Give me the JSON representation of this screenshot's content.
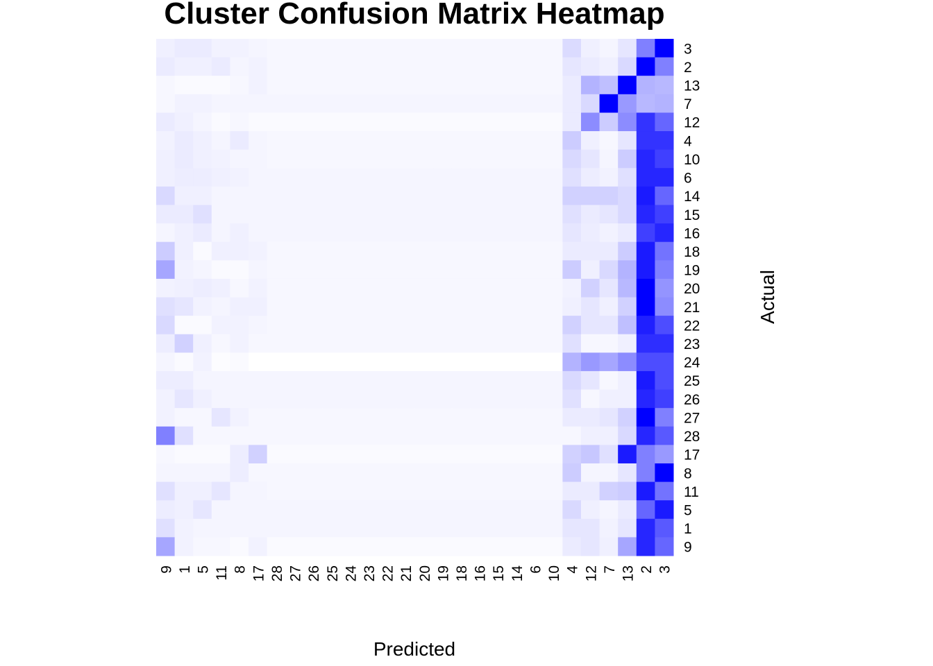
{
  "chart_data": {
    "type": "heatmap",
    "title": "Cluster Confusion Matrix Heatmap",
    "xlabel": "Predicted",
    "ylabel": "Actual",
    "x_categories": [
      "9",
      "1",
      "5",
      "11",
      "8",
      "17",
      "28",
      "27",
      "26",
      "25",
      "24",
      "23",
      "22",
      "21",
      "20",
      "19",
      "18",
      "16",
      "15",
      "14",
      "6",
      "10",
      "4",
      "12",
      "7",
      "13",
      "2",
      "3"
    ],
    "y_categories": [
      "3",
      "2",
      "13",
      "7",
      "12",
      "4",
      "10",
      "6",
      "14",
      "15",
      "16",
      "18",
      "19",
      "20",
      "21",
      "22",
      "23",
      "24",
      "25",
      "26",
      "27",
      "28",
      "17",
      "8",
      "11",
      "5",
      "1",
      "9"
    ],
    "value_range": [
      0,
      1
    ],
    "color_low": "#ffffff",
    "color_high": "#0000ff",
    "values": [
      [
        0.06,
        0.08,
        0.08,
        0.05,
        0.05,
        0.04,
        0.03,
        0.03,
        0.03,
        0.03,
        0.03,
        0.03,
        0.03,
        0.03,
        0.03,
        0.03,
        0.03,
        0.03,
        0.03,
        0.03,
        0.03,
        0.03,
        0.14,
        0.06,
        0.04,
        0.1,
        0.5,
        1.0
      ],
      [
        0.08,
        0.06,
        0.06,
        0.08,
        0.04,
        0.05,
        0.03,
        0.03,
        0.03,
        0.03,
        0.03,
        0.03,
        0.03,
        0.03,
        0.03,
        0.03,
        0.03,
        0.03,
        0.03,
        0.03,
        0.03,
        0.03,
        0.1,
        0.08,
        0.06,
        0.15,
        1.0,
        0.5
      ],
      [
        0.03,
        0.02,
        0.02,
        0.02,
        0.03,
        0.05,
        0.03,
        0.03,
        0.03,
        0.03,
        0.03,
        0.03,
        0.03,
        0.03,
        0.03,
        0.03,
        0.03,
        0.03,
        0.03,
        0.03,
        0.03,
        0.03,
        0.08,
        0.3,
        0.25,
        1.0,
        0.3,
        0.28
      ],
      [
        0.03,
        0.05,
        0.05,
        0.04,
        0.04,
        0.04,
        0.04,
        0.04,
        0.04,
        0.04,
        0.04,
        0.04,
        0.04,
        0.04,
        0.04,
        0.04,
        0.04,
        0.04,
        0.04,
        0.04,
        0.04,
        0.04,
        0.08,
        0.15,
        1.0,
        0.4,
        0.28,
        0.3
      ],
      [
        0.08,
        0.06,
        0.04,
        0.02,
        0.03,
        0.02,
        0.02,
        0.02,
        0.02,
        0.02,
        0.02,
        0.02,
        0.02,
        0.02,
        0.02,
        0.02,
        0.02,
        0.02,
        0.02,
        0.02,
        0.02,
        0.02,
        0.08,
        0.45,
        0.2,
        0.45,
        0.8,
        0.6
      ],
      [
        0.05,
        0.08,
        0.06,
        0.04,
        0.08,
        0.04,
        0.03,
        0.03,
        0.03,
        0.03,
        0.03,
        0.03,
        0.03,
        0.03,
        0.03,
        0.03,
        0.03,
        0.03,
        0.03,
        0.03,
        0.03,
        0.03,
        0.2,
        0.06,
        0.03,
        0.1,
        0.8,
        0.8
      ],
      [
        0.06,
        0.08,
        0.06,
        0.05,
        0.04,
        0.04,
        0.03,
        0.03,
        0.03,
        0.03,
        0.03,
        0.03,
        0.03,
        0.03,
        0.03,
        0.03,
        0.03,
        0.03,
        0.03,
        0.03,
        0.03,
        0.03,
        0.15,
        0.1,
        0.04,
        0.2,
        0.85,
        0.75
      ],
      [
        0.06,
        0.07,
        0.07,
        0.06,
        0.05,
        0.04,
        0.04,
        0.04,
        0.04,
        0.04,
        0.04,
        0.04,
        0.04,
        0.04,
        0.04,
        0.04,
        0.04,
        0.04,
        0.04,
        0.04,
        0.04,
        0.04,
        0.12,
        0.07,
        0.05,
        0.12,
        0.85,
        0.85
      ],
      [
        0.15,
        0.06,
        0.06,
        0.04,
        0.04,
        0.04,
        0.04,
        0.04,
        0.04,
        0.04,
        0.04,
        0.04,
        0.04,
        0.04,
        0.04,
        0.04,
        0.04,
        0.04,
        0.04,
        0.04,
        0.04,
        0.04,
        0.18,
        0.18,
        0.18,
        0.15,
        0.9,
        0.6
      ],
      [
        0.08,
        0.08,
        0.12,
        0.04,
        0.04,
        0.04,
        0.04,
        0.04,
        0.04,
        0.04,
        0.04,
        0.04,
        0.04,
        0.04,
        0.04,
        0.04,
        0.04,
        0.04,
        0.04,
        0.04,
        0.04,
        0.04,
        0.12,
        0.08,
        0.1,
        0.15,
        0.85,
        0.75
      ],
      [
        0.04,
        0.06,
        0.08,
        0.04,
        0.06,
        0.04,
        0.04,
        0.04,
        0.04,
        0.04,
        0.04,
        0.04,
        0.04,
        0.04,
        0.04,
        0.04,
        0.04,
        0.04,
        0.04,
        0.04,
        0.04,
        0.04,
        0.1,
        0.07,
        0.05,
        0.08,
        0.75,
        0.85
      ],
      [
        0.2,
        0.06,
        0.02,
        0.06,
        0.06,
        0.05,
        0.03,
        0.03,
        0.03,
        0.03,
        0.03,
        0.03,
        0.03,
        0.03,
        0.03,
        0.03,
        0.03,
        0.03,
        0.03,
        0.03,
        0.03,
        0.03,
        0.08,
        0.08,
        0.08,
        0.2,
        0.9,
        0.55
      ],
      [
        0.35,
        0.05,
        0.04,
        0.02,
        0.02,
        0.04,
        0.03,
        0.03,
        0.03,
        0.03,
        0.03,
        0.03,
        0.03,
        0.03,
        0.03,
        0.03,
        0.03,
        0.03,
        0.03,
        0.03,
        0.03,
        0.03,
        0.2,
        0.06,
        0.15,
        0.3,
        0.9,
        0.5
      ],
      [
        0.05,
        0.06,
        0.07,
        0.06,
        0.03,
        0.05,
        0.03,
        0.03,
        0.03,
        0.03,
        0.03,
        0.03,
        0.03,
        0.03,
        0.03,
        0.03,
        0.03,
        0.03,
        0.03,
        0.03,
        0.03,
        0.03,
        0.05,
        0.18,
        0.1,
        0.28,
        1.0,
        0.42
      ],
      [
        0.12,
        0.1,
        0.05,
        0.04,
        0.06,
        0.06,
        0.03,
        0.03,
        0.03,
        0.03,
        0.03,
        0.03,
        0.03,
        0.03,
        0.03,
        0.03,
        0.03,
        0.03,
        0.03,
        0.03,
        0.03,
        0.03,
        0.06,
        0.1,
        0.06,
        0.18,
        1.0,
        0.45
      ],
      [
        0.15,
        0.02,
        0.02,
        0.05,
        0.05,
        0.04,
        0.03,
        0.03,
        0.03,
        0.03,
        0.03,
        0.03,
        0.03,
        0.03,
        0.03,
        0.03,
        0.03,
        0.03,
        0.03,
        0.03,
        0.03,
        0.03,
        0.18,
        0.1,
        0.1,
        0.25,
        0.88,
        0.7
      ],
      [
        0.07,
        0.18,
        0.06,
        0.03,
        0.05,
        0.03,
        0.03,
        0.03,
        0.03,
        0.03,
        0.03,
        0.03,
        0.03,
        0.03,
        0.03,
        0.03,
        0.03,
        0.03,
        0.03,
        0.03,
        0.03,
        0.03,
        0.12,
        0.03,
        0.03,
        0.06,
        0.82,
        0.82
      ],
      [
        0.04,
        0.02,
        0.05,
        0.01,
        0.02,
        0.0,
        0.0,
        0.0,
        0.0,
        0.0,
        0.0,
        0.0,
        0.0,
        0.0,
        0.0,
        0.0,
        0.0,
        0.0,
        0.0,
        0.0,
        0.0,
        0.0,
        0.3,
        0.4,
        0.35,
        0.45,
        0.7,
        0.7
      ],
      [
        0.07,
        0.07,
        0.04,
        0.04,
        0.04,
        0.04,
        0.04,
        0.04,
        0.04,
        0.04,
        0.04,
        0.04,
        0.04,
        0.04,
        0.04,
        0.04,
        0.04,
        0.04,
        0.04,
        0.04,
        0.04,
        0.04,
        0.15,
        0.1,
        0.03,
        0.06,
        0.9,
        0.7
      ],
      [
        0.05,
        0.1,
        0.06,
        0.04,
        0.04,
        0.04,
        0.04,
        0.04,
        0.04,
        0.04,
        0.04,
        0.04,
        0.04,
        0.04,
        0.04,
        0.04,
        0.04,
        0.04,
        0.04,
        0.04,
        0.04,
        0.04,
        0.12,
        0.03,
        0.06,
        0.06,
        0.85,
        0.75
      ],
      [
        0.05,
        0.03,
        0.03,
        0.1,
        0.05,
        0.03,
        0.03,
        0.03,
        0.03,
        0.03,
        0.03,
        0.03,
        0.03,
        0.03,
        0.03,
        0.03,
        0.03,
        0.03,
        0.03,
        0.03,
        0.03,
        0.03,
        0.08,
        0.08,
        0.1,
        0.18,
        1.0,
        0.5
      ],
      [
        0.5,
        0.12,
        0.03,
        0.03,
        0.03,
        0.03,
        0.03,
        0.03,
        0.03,
        0.03,
        0.03,
        0.03,
        0.03,
        0.03,
        0.03,
        0.03,
        0.03,
        0.03,
        0.03,
        0.03,
        0.03,
        0.03,
        0.03,
        0.06,
        0.06,
        0.15,
        0.85,
        0.65
      ],
      [
        0.03,
        0.02,
        0.02,
        0.02,
        0.07,
        0.18,
        0.02,
        0.02,
        0.02,
        0.02,
        0.02,
        0.02,
        0.02,
        0.02,
        0.02,
        0.02,
        0.02,
        0.02,
        0.02,
        0.02,
        0.02,
        0.02,
        0.18,
        0.22,
        0.12,
        0.9,
        0.5,
        0.4
      ],
      [
        0.04,
        0.04,
        0.04,
        0.04,
        0.07,
        0.03,
        0.03,
        0.03,
        0.03,
        0.03,
        0.03,
        0.03,
        0.03,
        0.03,
        0.03,
        0.03,
        0.03,
        0.03,
        0.03,
        0.03,
        0.03,
        0.03,
        0.2,
        0.04,
        0.04,
        0.1,
        0.5,
        1.0
      ],
      [
        0.12,
        0.06,
        0.06,
        0.1,
        0.04,
        0.04,
        0.03,
        0.03,
        0.03,
        0.03,
        0.03,
        0.03,
        0.03,
        0.03,
        0.03,
        0.03,
        0.03,
        0.03,
        0.03,
        0.03,
        0.03,
        0.03,
        0.08,
        0.08,
        0.18,
        0.2,
        0.9,
        0.55
      ],
      [
        0.07,
        0.06,
        0.1,
        0.04,
        0.04,
        0.04,
        0.04,
        0.04,
        0.04,
        0.04,
        0.04,
        0.04,
        0.04,
        0.04,
        0.04,
        0.04,
        0.04,
        0.04,
        0.04,
        0.04,
        0.04,
        0.04,
        0.15,
        0.06,
        0.04,
        0.08,
        0.6,
        0.9
      ],
      [
        0.12,
        0.05,
        0.04,
        0.04,
        0.04,
        0.04,
        0.04,
        0.04,
        0.04,
        0.04,
        0.04,
        0.04,
        0.04,
        0.04,
        0.04,
        0.04,
        0.04,
        0.04,
        0.04,
        0.04,
        0.04,
        0.04,
        0.1,
        0.1,
        0.05,
        0.1,
        0.85,
        0.65
      ],
      [
        0.35,
        0.05,
        0.03,
        0.03,
        0.02,
        0.05,
        0.02,
        0.02,
        0.02,
        0.02,
        0.02,
        0.02,
        0.02,
        0.02,
        0.02,
        0.02,
        0.02,
        0.02,
        0.02,
        0.02,
        0.02,
        0.02,
        0.08,
        0.1,
        0.06,
        0.35,
        0.85,
        0.6
      ]
    ]
  }
}
